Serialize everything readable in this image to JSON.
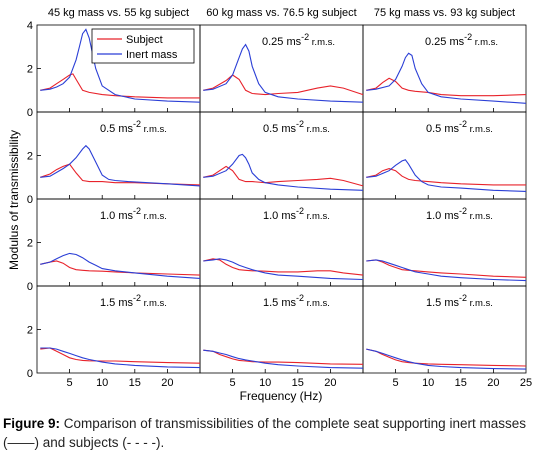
{
  "chart_data": {
    "type": "line",
    "ylabel": "Modulus of transmissibility",
    "xlabel": "Frequency (Hz)",
    "xlim": [
      0,
      25
    ],
    "ylim": [
      0,
      4
    ],
    "xticks": [
      5,
      10,
      15,
      20,
      25
    ],
    "xtick_labels": [
      "5",
      "10",
      "15",
      "20",
      "25"
    ],
    "yticks": [
      0,
      2,
      4
    ],
    "ytick_labels": [
      "0",
      "2",
      "4"
    ],
    "grid": false,
    "legend": {
      "position": "top-left of first panel",
      "entries": [
        "Subject",
        "Inert mass"
      ]
    },
    "colors": {
      "subject": "#e8232b",
      "inert": "#2b3fd6"
    },
    "columns": [
      "45 kg mass vs. 55 kg subject",
      "60 kg mass vs. 76.5 kg subject",
      "75 kg mass vs. 93 kg subject"
    ],
    "rows": [
      {
        "label_value": "0.25 ms",
        "label_exp": "-2",
        "label_unit": " r.m.s."
      },
      {
        "label_value": "0.5 ms",
        "label_exp": "-2",
        "label_unit": " r.m.s."
      },
      {
        "label_value": "1.0 ms",
        "label_exp": "-2",
        "label_unit": " r.m.s."
      },
      {
        "label_value": "1.5 ms",
        "label_exp": "-2",
        "label_unit": " r.m.s."
      }
    ],
    "panels": [
      [
        {
          "subject": {
            "x": [
              0.5,
              2,
              3,
              4,
              5,
              5.5,
              6,
              7,
              8,
              10,
              12,
              15,
              20,
              25
            ],
            "y": [
              1.0,
              1.1,
              1.3,
              1.5,
              1.7,
              1.75,
              1.5,
              1.0,
              0.9,
              0.8,
              0.75,
              0.7,
              0.65,
              0.65
            ]
          },
          "inert": {
            "x": [
              0.5,
              2,
              3,
              4,
              5,
              6,
              6.5,
              7,
              7.5,
              8,
              9,
              10,
              12,
              15,
              20,
              25
            ],
            "y": [
              1.0,
              1.05,
              1.15,
              1.3,
              1.6,
              2.4,
              3.0,
              3.6,
              3.8,
              3.4,
              2.0,
              1.2,
              0.8,
              0.6,
              0.5,
              0.45
            ]
          }
        },
        {
          "subject": {
            "x": [
              0.5,
              2,
              4,
              5,
              6,
              7,
              8,
              10,
              12,
              15,
              18,
              20,
              22,
              25
            ],
            "y": [
              1.0,
              1.1,
              1.45,
              1.7,
              1.5,
              1.0,
              0.85,
              0.8,
              0.85,
              0.9,
              1.1,
              1.2,
              1.1,
              0.8
            ]
          },
          "inert": {
            "x": [
              0.5,
              2,
              4,
              5,
              6,
              6.5,
              7,
              7.5,
              8,
              9,
              10,
              12,
              15,
              20,
              25
            ],
            "y": [
              1.0,
              1.05,
              1.3,
              1.7,
              2.5,
              2.9,
              3.1,
              2.8,
              2.1,
              1.3,
              0.9,
              0.7,
              0.6,
              0.5,
              0.45
            ]
          }
        },
        {
          "subject": {
            "x": [
              0.5,
              2,
              3,
              4,
              5,
              6,
              7,
              8,
              10,
              12,
              15,
              20,
              25
            ],
            "y": [
              1.0,
              1.1,
              1.35,
              1.55,
              1.4,
              1.1,
              1.0,
              0.95,
              0.9,
              0.8,
              0.75,
              0.75,
              0.8
            ]
          },
          "inert": {
            "x": [
              0.5,
              2,
              4,
              5,
              6,
              6.5,
              7,
              7.5,
              8,
              9,
              10,
              12,
              15,
              20,
              25
            ],
            "y": [
              1.0,
              1.05,
              1.2,
              1.5,
              2.1,
              2.5,
              2.7,
              2.6,
              2.0,
              1.3,
              0.9,
              0.7,
              0.6,
              0.5,
              0.4
            ]
          }
        }
      ],
      [
        {
          "subject": {
            "x": [
              0.5,
              2,
              3,
              4,
              5,
              6,
              7,
              8,
              10,
              12,
              15,
              20,
              25
            ],
            "y": [
              1.0,
              1.15,
              1.35,
              1.5,
              1.6,
              1.2,
              0.85,
              0.8,
              0.8,
              0.75,
              0.75,
              0.7,
              0.65
            ]
          },
          "inert": {
            "x": [
              0.5,
              2,
              4,
              5,
              6,
              7,
              7.5,
              8,
              9,
              10,
              11,
              12,
              14,
              17,
              20,
              25
            ],
            "y": [
              1.0,
              1.05,
              1.4,
              1.6,
              1.9,
              2.3,
              2.45,
              2.3,
              1.7,
              1.1,
              0.9,
              0.85,
              0.8,
              0.75,
              0.7,
              0.6
            ]
          }
        },
        {
          "subject": {
            "x": [
              0.5,
              2,
              3,
              4,
              5,
              6,
              7,
              8,
              10,
              12,
              15,
              18,
              20,
              22,
              25
            ],
            "y": [
              1.0,
              1.1,
              1.3,
              1.5,
              1.3,
              0.9,
              0.8,
              0.8,
              0.75,
              0.8,
              0.85,
              0.9,
              0.95,
              0.85,
              0.6
            ]
          },
          "inert": {
            "x": [
              0.5,
              2,
              4,
              5,
              6,
              6.5,
              7,
              7.5,
              8,
              9,
              10,
              12,
              15,
              20,
              25
            ],
            "y": [
              1.0,
              1.05,
              1.3,
              1.6,
              2.0,
              2.05,
              1.9,
              1.6,
              1.2,
              0.9,
              0.75,
              0.65,
              0.55,
              0.45,
              0.4
            ]
          }
        },
        {
          "subject": {
            "x": [
              0.5,
              2,
              3,
              4,
              5,
              6,
              7,
              8,
              10,
              12,
              15,
              20,
              25
            ],
            "y": [
              1.0,
              1.1,
              1.3,
              1.4,
              1.3,
              1.05,
              0.9,
              0.85,
              0.8,
              0.75,
              0.7,
              0.65,
              0.65
            ]
          },
          "inert": {
            "x": [
              0.5,
              2,
              4,
              5,
              6,
              6.5,
              7,
              8,
              9,
              10,
              12,
              15,
              20,
              25
            ],
            "y": [
              1.0,
              1.05,
              1.3,
              1.55,
              1.75,
              1.8,
              1.6,
              1.1,
              0.8,
              0.65,
              0.55,
              0.5,
              0.4,
              0.35
            ]
          }
        }
      ],
      [
        {
          "subject": {
            "x": [
              0.5,
              2,
              3,
              4,
              5,
              6,
              7,
              8,
              10,
              12,
              15,
              20,
              25
            ],
            "y": [
              1.0,
              1.1,
              1.15,
              1.05,
              0.85,
              0.75,
              0.72,
              0.7,
              0.68,
              0.65,
              0.6,
              0.55,
              0.5
            ]
          },
          "inert": {
            "x": [
              0.5,
              2,
              3,
              4,
              5,
              6,
              7,
              8,
              9,
              10,
              12,
              15,
              20,
              25
            ],
            "y": [
              1.0,
              1.1,
              1.25,
              1.4,
              1.5,
              1.45,
              1.3,
              1.1,
              0.95,
              0.8,
              0.7,
              0.6,
              0.45,
              0.35
            ]
          }
        },
        {
          "subject": {
            "x": [
              0.5,
              2,
              3,
              4,
              5,
              6,
              7,
              8,
              10,
              12,
              15,
              18,
              20,
              22,
              25
            ],
            "y": [
              1.15,
              1.25,
              1.2,
              1.0,
              0.85,
              0.75,
              0.72,
              0.7,
              0.68,
              0.65,
              0.65,
              0.7,
              0.7,
              0.6,
              0.5
            ]
          },
          "inert": {
            "x": [
              0.5,
              2,
              3,
              4,
              5,
              6,
              7,
              8,
              10,
              12,
              15,
              20,
              25
            ],
            "y": [
              1.15,
              1.2,
              1.25,
              1.2,
              1.1,
              0.95,
              0.85,
              0.75,
              0.6,
              0.5,
              0.45,
              0.35,
              0.3
            ]
          }
        },
        {
          "subject": {
            "x": [
              0.5,
              2,
              3,
              4,
              5,
              6,
              7,
              8,
              10,
              12,
              15,
              20,
              25
            ],
            "y": [
              1.15,
              1.2,
              1.1,
              0.95,
              0.85,
              0.75,
              0.72,
              0.7,
              0.65,
              0.6,
              0.55,
              0.45,
              0.4
            ]
          },
          "inert": {
            "x": [
              0.5,
              2,
              3,
              4,
              5,
              6,
              7,
              8,
              10,
              12,
              15,
              20,
              25
            ],
            "y": [
              1.15,
              1.2,
              1.15,
              1.05,
              0.95,
              0.85,
              0.75,
              0.65,
              0.55,
              0.45,
              0.38,
              0.3,
              0.25
            ]
          }
        }
      ],
      [
        {
          "subject": {
            "x": [
              0.5,
              2,
              3,
              4,
              5,
              6,
              7,
              8,
              10,
              12,
              15,
              20,
              25
            ],
            "y": [
              1.1,
              1.15,
              1.0,
              0.85,
              0.7,
              0.62,
              0.58,
              0.56,
              0.55,
              0.55,
              0.52,
              0.48,
              0.45
            ]
          },
          "inert": {
            "x": [
              0.5,
              2,
              3,
              4,
              5,
              6,
              7,
              8,
              10,
              12,
              15,
              20,
              25
            ],
            "y": [
              1.15,
              1.15,
              1.1,
              1.0,
              0.9,
              0.8,
              0.7,
              0.62,
              0.5,
              0.42,
              0.35,
              0.28,
              0.25
            ]
          }
        },
        {
          "subject": {
            "x": [
              0.5,
              2,
              3,
              4,
              5,
              6,
              7,
              8,
              10,
              12,
              15,
              20,
              25
            ],
            "y": [
              1.05,
              1.0,
              0.85,
              0.75,
              0.65,
              0.58,
              0.55,
              0.52,
              0.5,
              0.5,
              0.48,
              0.42,
              0.4
            ]
          },
          "inert": {
            "x": [
              0.5,
              2,
              3,
              4,
              5,
              6,
              7,
              8,
              10,
              12,
              15,
              20,
              25
            ],
            "y": [
              1.05,
              1.0,
              0.92,
              0.85,
              0.75,
              0.66,
              0.6,
              0.55,
              0.45,
              0.38,
              0.32,
              0.25,
              0.22
            ]
          }
        },
        {
          "subject": {
            "x": [
              0.5,
              2,
              3,
              4,
              5,
              6,
              7,
              8,
              10,
              12,
              15,
              20,
              25
            ],
            "y": [
              1.1,
              1.0,
              0.85,
              0.72,
              0.6,
              0.52,
              0.48,
              0.45,
              0.42,
              0.4,
              0.38,
              0.35,
              0.32
            ]
          },
          "inert": {
            "x": [
              0.5,
              2,
              3,
              4,
              5,
              6,
              7,
              8,
              10,
              12,
              15,
              20,
              25
            ],
            "y": [
              1.1,
              1.0,
              0.9,
              0.8,
              0.7,
              0.6,
              0.52,
              0.45,
              0.35,
              0.3,
              0.25,
              0.2,
              0.18
            ]
          }
        }
      ]
    ]
  },
  "caption": {
    "label": "Figure 9:",
    "text": " Comparison of transmissibilities of the complete seat supporting inert masses (——) and subjects (- - - -)."
  }
}
